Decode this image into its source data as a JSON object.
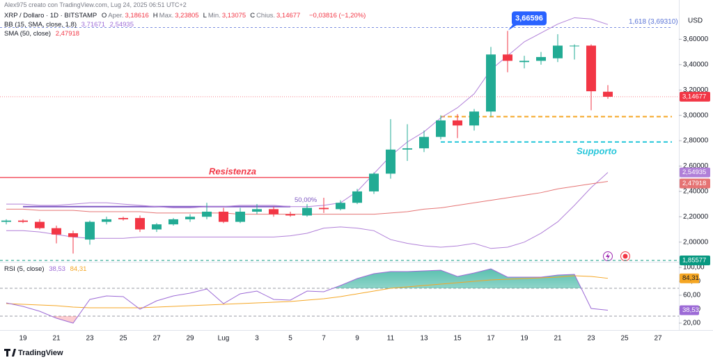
{
  "chart_data": {
    "type": "candlestick",
    "header": {
      "credit": "Alex975 creato con TradingView.com, Lug 24, 2025 06:51 UTC+2",
      "symbol": "XRP / Dollaro · 1D · BITSTAMP",
      "ohlc": [
        {
          "key": "O",
          "label": "Aper.",
          "value": "3,18616"
        },
        {
          "key": "H",
          "label": "Max.",
          "value": "3,23805"
        },
        {
          "key": "L",
          "label": "Min.",
          "value": "3,13075"
        },
        {
          "key": "C",
          "label": "Chius.",
          "value": "3,14677"
        }
      ],
      "change": "−0,03816 (−1,20%)"
    },
    "currency": "USD",
    "categories": [
      null,
      "19",
      null,
      "21",
      null,
      "23",
      null,
      "25",
      null,
      "27",
      null,
      "29",
      null,
      "Lug",
      null,
      "3",
      null,
      "5",
      null,
      "7",
      null,
      "9",
      null,
      "11",
      null,
      "13",
      null,
      "15",
      null,
      "17",
      null,
      "19",
      null,
      "21",
      null,
      "23",
      null,
      "25",
      null,
      "27",
      null
    ],
    "open": [
      2.16,
      2.17,
      2.16,
      2.11,
      2.07,
      2.02,
      2.16,
      2.19,
      2.19,
      2.1,
      2.14,
      2.18,
      2.2,
      2.24,
      2.16,
      2.24,
      2.26,
      2.22,
      2.21,
      2.27,
      2.26,
      2.31,
      2.4,
      2.54,
      2.73,
      2.74,
      2.83,
      2.96,
      2.92,
      3.03,
      3.48,
      3.42,
      3.43,
      3.45,
      3.55,
      3.55,
      3.18616,
      null,
      null,
      null,
      null
    ],
    "high": [
      2.18,
      2.18,
      2.18,
      2.13,
      2.09,
      2.17,
      2.2,
      2.2,
      2.21,
      2.15,
      2.19,
      2.22,
      2.31,
      2.27,
      2.27,
      2.3,
      2.28,
      2.24,
      2.3,
      2.35,
      2.33,
      2.42,
      2.55,
      2.97,
      2.93,
      2.88,
      3.0,
      3.01,
      3.05,
      3.54,
      3.66596,
      3.47,
      3.5,
      3.64,
      3.56,
      3.56,
      3.23805,
      null,
      null,
      null,
      null
    ],
    "low": [
      2.14,
      2.15,
      2.1,
      1.99,
      1.91,
      1.98,
      2.14,
      2.17,
      2.08,
      2.08,
      2.13,
      2.16,
      2.18,
      2.15,
      2.15,
      2.22,
      2.2,
      2.2,
      2.2,
      2.23,
      2.25,
      2.3,
      2.38,
      2.5,
      2.64,
      2.71,
      2.81,
      2.82,
      2.88,
      2.99,
      3.34,
      3.37,
      3.4,
      3.42,
      3.44,
      3.04,
      3.13075,
      null,
      null,
      null,
      null
    ],
    "close": [
      2.17,
      2.16,
      2.11,
      2.06,
      2.04,
      2.16,
      2.18,
      2.18,
      2.1,
      2.14,
      2.18,
      2.2,
      2.24,
      2.16,
      2.24,
      2.26,
      2.22,
      2.21,
      2.27,
      2.26,
      2.31,
      2.4,
      2.54,
      2.73,
      2.74,
      2.83,
      2.96,
      2.92,
      3.03,
      3.48,
      3.43,
      3.43,
      3.46,
      3.55,
      3.55,
      3.19,
      3.14677,
      null,
      null,
      null,
      null
    ],
    "up_color": "#22ab94",
    "down_color": "#f23645",
    "ylim": [
      1.85,
      3.8
    ],
    "yticks": [
      {
        "value": 2.0,
        "label": "2,00000"
      },
      {
        "value": 2.2,
        "label": "2,20000"
      },
      {
        "value": 2.4,
        "label": "2,40000"
      },
      {
        "value": 2.6,
        "label": "2,60000"
      },
      {
        "value": 2.8,
        "label": "2,80000"
      },
      {
        "value": 3.0,
        "label": "3,00000"
      },
      {
        "value": 3.2,
        "label": "3,20000"
      },
      {
        "value": 3.4,
        "label": "3,40000"
      },
      {
        "value": 3.6,
        "label": "3,60000"
      }
    ],
    "grid": false,
    "bands": {
      "name": "BB (15, SMA, close, 1,8)",
      "color": "#b07fd8",
      "upper": [
        2.3,
        2.3,
        2.29,
        2.29,
        2.3,
        2.31,
        2.31,
        2.3,
        2.29,
        2.28,
        2.27,
        2.27,
        2.28,
        2.28,
        2.29,
        2.29,
        2.29,
        2.28,
        2.28,
        2.29,
        2.31,
        2.4,
        2.54,
        2.68,
        2.79,
        2.87,
        2.98,
        3.06,
        3.17,
        3.36,
        3.47,
        3.58,
        3.65,
        3.72,
        3.77,
        3.76,
        3.71671,
        null,
        null,
        null,
        null
      ],
      "lower": [
        2.09,
        2.09,
        2.08,
        2.06,
        2.04,
        2.03,
        2.03,
        2.03,
        2.04,
        2.04,
        2.04,
        2.04,
        2.04,
        2.04,
        2.04,
        2.04,
        2.04,
        2.05,
        2.07,
        2.11,
        2.12,
        2.11,
        2.09,
        2.02,
        1.99,
        1.97,
        1.96,
        1.97,
        1.99,
        1.95,
        1.96,
        2.0,
        2.07,
        2.16,
        2.29,
        2.43,
        2.54935,
        null,
        null,
        null,
        null
      ],
      "upper_label": "3,71671",
      "lower_label": "2,54935"
    },
    "sma": {
      "name": "SMA (50, close)",
      "color": "#e57373",
      "values": [
        2.26,
        2.26,
        2.25,
        2.25,
        2.25,
        2.24,
        2.24,
        2.24,
        2.24,
        2.23,
        2.23,
        2.23,
        2.23,
        2.23,
        2.22,
        2.22,
        2.22,
        2.22,
        2.22,
        2.22,
        2.22,
        2.22,
        2.22,
        2.23,
        2.24,
        2.26,
        2.27,
        2.29,
        2.31,
        2.33,
        2.35,
        2.37,
        2.39,
        2.42,
        2.44,
        2.46,
        2.47918,
        null,
        null,
        null,
        null
      ],
      "value_label": "2,47918"
    },
    "levels": [
      {
        "value": 2.51,
        "label": "Resistenza",
        "color": "#f23645"
      },
      {
        "value": 2.79,
        "label": "Supporto",
        "color": "#26c6da"
      },
      {
        "value": 2.99,
        "color": "#f5a623"
      },
      {
        "value": 3.6931,
        "label": "1,618 (3,69310)",
        "color": "#7b8fe0"
      },
      {
        "value": 2.28,
        "label": "50,00%",
        "color": "#7e57c2"
      },
      {
        "value": 1.85577,
        "label": "1,85577",
        "color": "#089981"
      }
    ],
    "last_price": {
      "value": 3.14677,
      "label": "3,14677",
      "color": "#f23645"
    },
    "callout": {
      "value": 3.66596,
      "label": "3,66596",
      "color": "#2962ff"
    },
    "rsi": {
      "name": "RSI (5, close)",
      "color": "#9c6ad6",
      "ma_color": "#f5a623",
      "values": [
        49,
        44,
        37,
        27,
        20,
        54,
        59,
        58,
        40,
        52,
        59,
        63,
        69,
        48,
        62,
        66,
        54,
        53,
        66,
        65,
        74,
        84,
        91,
        94,
        94,
        95,
        96,
        87,
        92,
        98,
        86,
        86,
        86,
        89,
        90,
        41,
        38.53,
        null,
        null,
        null,
        null
      ],
      "ma": [
        48,
        47,
        46,
        45,
        43,
        42,
        42,
        42,
        42,
        43,
        44,
        45,
        46,
        47,
        48,
        49,
        50,
        51,
        53,
        55,
        58,
        62,
        66,
        70,
        72,
        74,
        76,
        78,
        80,
        82,
        83,
        84,
        85,
        86,
        88,
        87,
        84.31,
        null,
        null,
        null,
        null
      ],
      "value_label": "38,53",
      "ma_label": "84,31",
      "ylim": [
        12,
        106
      ],
      "yticks": [
        {
          "value": 20,
          "label": "20,00"
        },
        {
          "value": 40,
          "label": "40,00"
        },
        {
          "value": 60,
          "label": "60,00"
        },
        {
          "value": 80,
          "label": "80,00"
        },
        {
          "value": 100,
          "label": "100,00"
        }
      ],
      "levels": [
        70,
        30
      ]
    },
    "footer": "TradingView"
  }
}
